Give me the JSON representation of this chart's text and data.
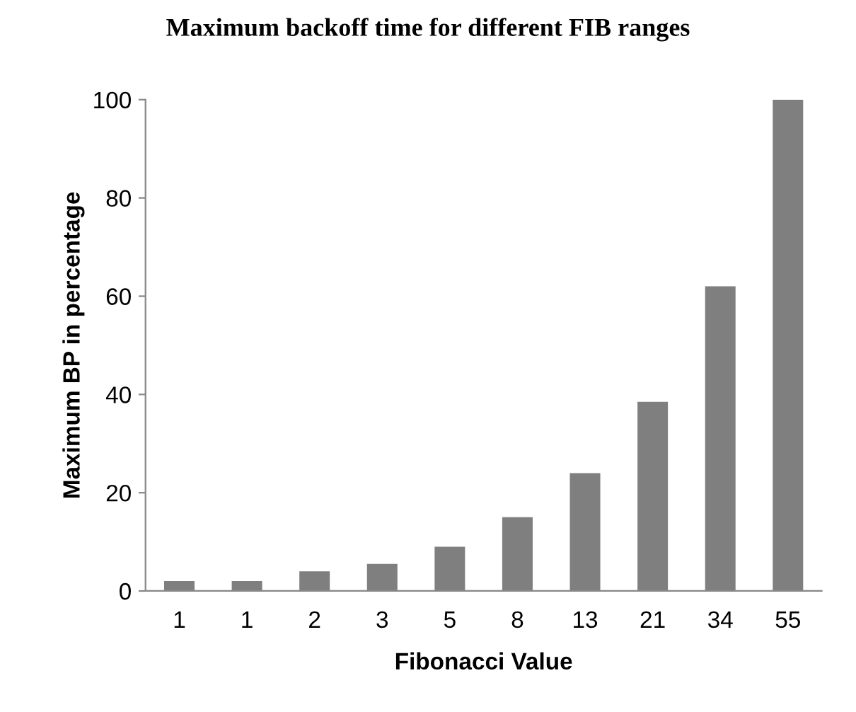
{
  "chart_data": {
    "type": "bar",
    "title": "Maximum backoff time for different FIB ranges",
    "xlabel": "Fibonacci Value",
    "ylabel": "Maximum BP in percentage",
    "categories": [
      "1",
      "1",
      "2",
      "3",
      "5",
      "8",
      "13",
      "21",
      "34",
      "55"
    ],
    "values": [
      2,
      2,
      4,
      5.5,
      9,
      15,
      24,
      38.5,
      62,
      100
    ],
    "color": "#7f7f7f",
    "ylim": [
      0,
      100
    ],
    "yticks": [
      0,
      20,
      40,
      60,
      80,
      100
    ],
    "grid": false,
    "legend": false
  }
}
